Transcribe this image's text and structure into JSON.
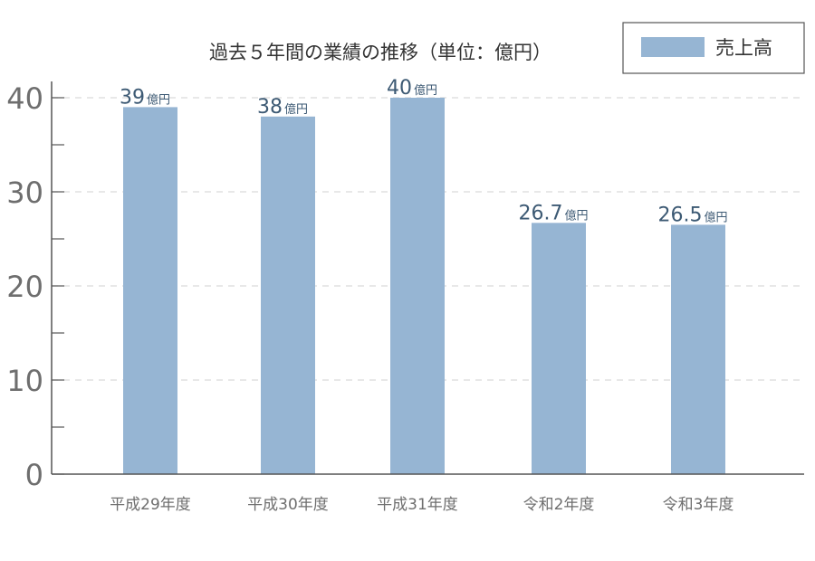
{
  "chart_data": {
    "type": "bar",
    "title": "過去５年間の業績の推移（単位：億円）",
    "categories": [
      "平成29年度",
      "平成30年度",
      "平成31年度",
      "令和2年度",
      "令和3年度"
    ],
    "series": [
      {
        "name": "売上高",
        "values": [
          39,
          38,
          40,
          26.7,
          26.5
        ],
        "color": "#96b5d3"
      }
    ],
    "data_labels": [
      "39",
      "38",
      "40",
      "26.7",
      "26.5"
    ],
    "data_label_unit": "億円",
    "ylim": [
      0,
      40
    ],
    "yticks": [
      "0",
      "10",
      "20",
      "30",
      "40"
    ],
    "grid": true,
    "legend_position": "top-right"
  }
}
